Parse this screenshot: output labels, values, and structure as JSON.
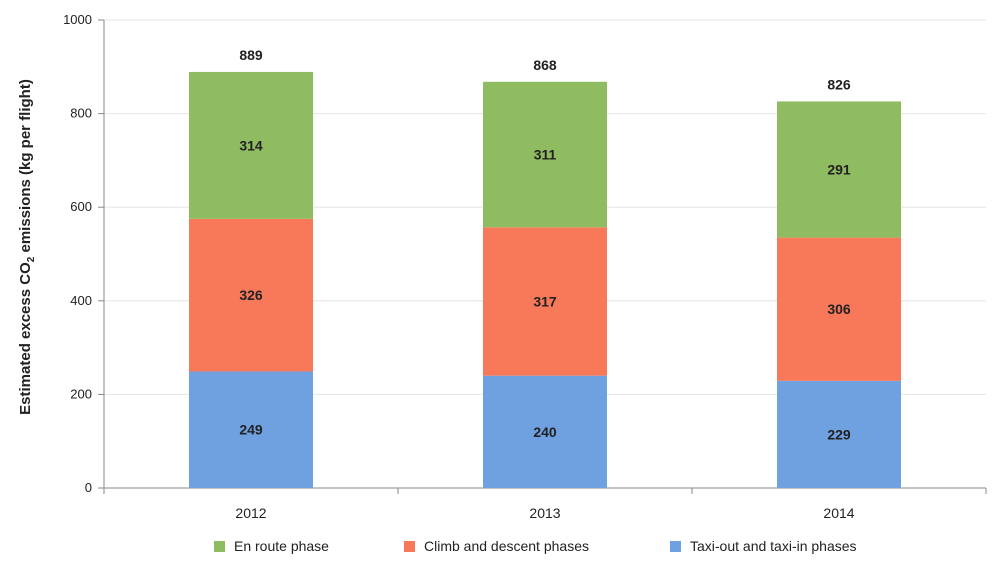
{
  "chart_data": {
    "type": "bar",
    "stacked": true,
    "categories": [
      "2012",
      "2013",
      "2014"
    ],
    "series": [
      {
        "name": "Taxi-out and taxi-in phases",
        "color": "#6fa0e0",
        "values": [
          249,
          240,
          229
        ]
      },
      {
        "name": "Climb and descent phases",
        "color": "#f8795a",
        "values": [
          326,
          317,
          306
        ]
      },
      {
        "name": "En route phase",
        "color": "#8fbb61",
        "values": [
          314,
          311,
          291
        ]
      }
    ],
    "totals": [
      889,
      868,
      826
    ],
    "ylabel": "Estimated excess CO",
    "ylabel_sub": "2",
    "ylabel_suffix": " emissions (kg per flight)",
    "ylim": [
      0,
      1000
    ],
    "yticks": [
      "0",
      "200",
      "400",
      "600",
      "800",
      "1000"
    ],
    "grid": true,
    "legend_position": "bottom",
    "legend_order": [
      "En route phase",
      "Climb and descent phases",
      "Taxi-out and taxi-in phases"
    ]
  }
}
